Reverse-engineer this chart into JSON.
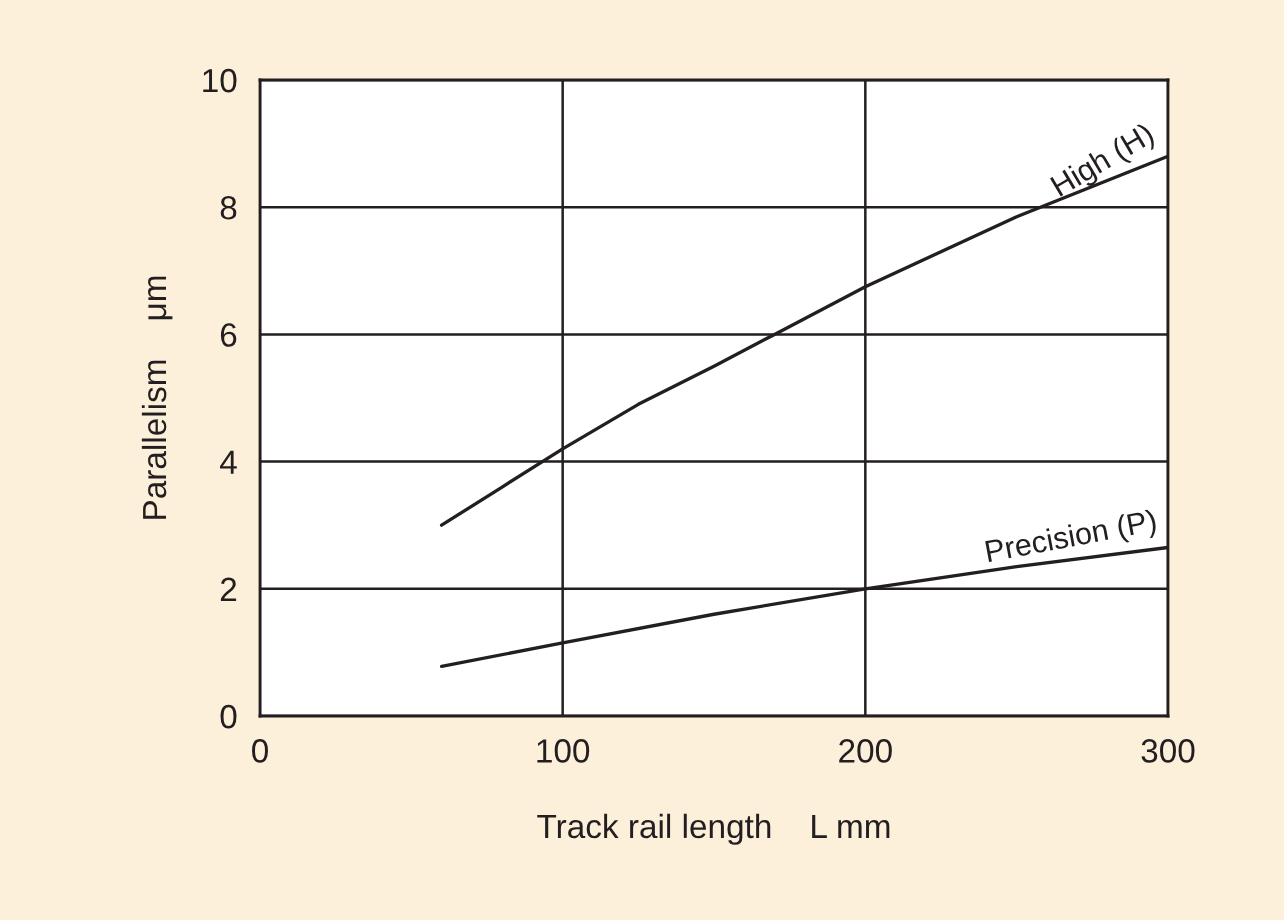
{
  "chart_data": {
    "type": "line",
    "xlabel": "Track rail length    L mm",
    "ylabel": "Parallelism    μm",
    "xlim": [
      0,
      300
    ],
    "xticks": [
      0,
      100,
      200,
      300
    ],
    "ylim": [
      0,
      10
    ],
    "yticks": [
      0,
      2,
      4,
      6,
      8,
      10
    ],
    "grid": true,
    "legend": false,
    "marker": "none",
    "line_style": "solid",
    "series": [
      {
        "name": "High (H)",
        "color": "#231f20",
        "x": [
          60,
          80,
          100,
          125,
          150,
          170,
          200,
          250,
          300
        ],
        "values": [
          3.0,
          3.6,
          4.2,
          4.9,
          5.5,
          6.0,
          6.75,
          7.85,
          8.8
        ]
      },
      {
        "name": "Precision (P)",
        "color": "#231f20",
        "x": [
          60,
          100,
          150,
          200,
          250,
          300
        ],
        "values": [
          0.78,
          1.15,
          1.6,
          2.0,
          2.35,
          2.65
        ]
      }
    ]
  }
}
